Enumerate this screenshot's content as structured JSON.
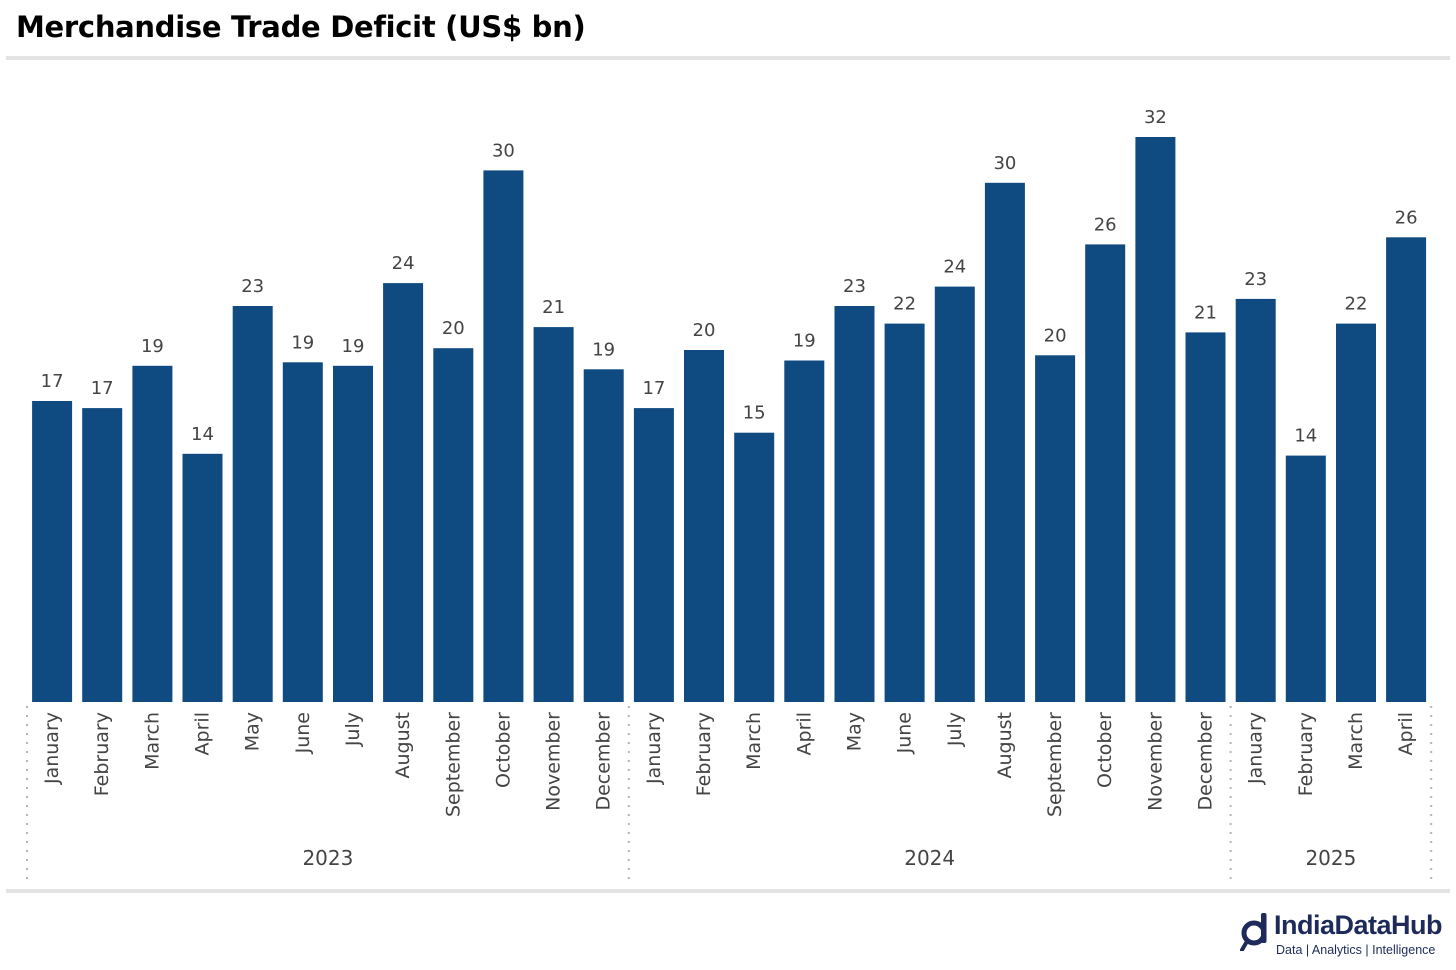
{
  "chart_data": {
    "type": "bar",
    "title": "Merchandise Trade Deficit (US$ bn)",
    "categories": [
      "January",
      "February",
      "March",
      "April",
      "May",
      "June",
      "July",
      "August",
      "September",
      "October",
      "November",
      "December",
      "January",
      "February",
      "March",
      "April",
      "May",
      "June",
      "July",
      "August",
      "September",
      "October",
      "November",
      "December",
      "January",
      "February",
      "March",
      "April"
    ],
    "groups": [
      {
        "label": "2023",
        "count": 12
      },
      {
        "label": "2024",
        "count": 12
      },
      {
        "label": "2025",
        "count": 4
      }
    ],
    "values": [
      17.1,
      16.7,
      19.1,
      14.1,
      22.5,
      19.3,
      19.1,
      23.8,
      20.1,
      30.2,
      21.3,
      18.9,
      16.7,
      20.0,
      15.3,
      19.4,
      22.5,
      21.5,
      23.6,
      29.5,
      19.7,
      26.0,
      32.1,
      21.0,
      22.9,
      14.0,
      21.5,
      26.4
    ],
    "data_labels": [
      "17",
      "17",
      "19",
      "14",
      "23",
      "19",
      "19",
      "24",
      "20",
      "30",
      "21",
      "19",
      "17",
      "20",
      "15",
      "19",
      "23",
      "22",
      "24",
      "30",
      "20",
      "26",
      "32",
      "21",
      "23",
      "14",
      "22",
      "26"
    ],
    "ylim": [
      0,
      32.1
    ],
    "bar_color": "#0f4a80",
    "grid": false,
    "legend": "none"
  },
  "logo": {
    "name": "IndiaDataHub",
    "tagline": "Data | Analytics | Intelligence",
    "color": "#1e2a5a"
  }
}
